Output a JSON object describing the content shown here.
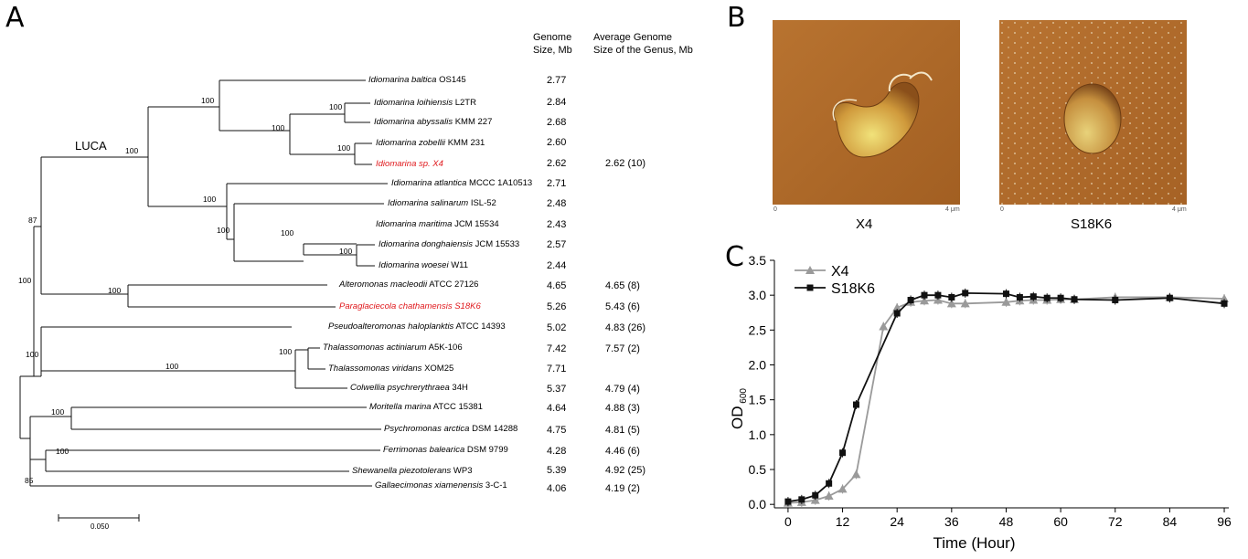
{
  "panels": {
    "a": "A",
    "b": "B",
    "c": "C"
  },
  "tree": {
    "headers": {
      "genome_size": [
        "Genome",
        "Size, Mb"
      ],
      "avg_genome": [
        "Average Genome",
        "Size of the Genus, Mb"
      ]
    },
    "luca_label": "LUCA",
    "scale_label": "0.050",
    "taxa": [
      {
        "genus": "Idiomarina baltica",
        "strain": "OS145",
        "size": "2.77",
        "avg": "",
        "highlight": false
      },
      {
        "genus": "Idiomarina loihiensis",
        "strain": "L2TR",
        "size": "2.84",
        "avg": "",
        "highlight": false
      },
      {
        "genus": "Idiomarina abyssalis",
        "strain": "KMM 227",
        "size": "2.68",
        "avg": "",
        "highlight": false
      },
      {
        "genus": "Idiomarina zobellii",
        "strain": "KMM 231",
        "size": "2.60",
        "avg": "",
        "highlight": false
      },
      {
        "genus": "Idiomarina sp. X4",
        "strain": "",
        "size": "2.62",
        "avg": "2.62 (10)",
        "highlight": true
      },
      {
        "genus": "Idiomarina atlantica",
        "strain": "MCCC 1A10513",
        "size": "2.71",
        "avg": "",
        "highlight": false
      },
      {
        "genus": "Idiomarina salinarum",
        "strain": "ISL-52",
        "size": "2.48",
        "avg": "",
        "highlight": false
      },
      {
        "genus": "Idiomarina maritima",
        "strain": "JCM 15534",
        "size": "2.43",
        "avg": "",
        "highlight": false
      },
      {
        "genus": "Idiomarina donghaiensis",
        "strain": "JCM 15533",
        "size": "2.57",
        "avg": "",
        "highlight": false
      },
      {
        "genus": "Idiomarina woesei",
        "strain": "W11",
        "size": "2.44",
        "avg": "",
        "highlight": false
      },
      {
        "genus": "Alteromonas macleodii",
        "strain": "ATCC 27126",
        "size": "4.65",
        "avg": "4.65 (8)",
        "highlight": false
      },
      {
        "genus": "Paraglaciecola chathamensis S18K6",
        "strain": "",
        "size": "5.26",
        "avg": "5.43 (6)",
        "highlight": true
      },
      {
        "genus": "Pseudoalteromonas haloplanktis",
        "strain": "ATCC 14393",
        "size": "5.02",
        "avg": "4.83 (26)",
        "highlight": false
      },
      {
        "genus": "Thalassomonas actiniarum",
        "strain": "A5K-106",
        "size": "7.42",
        "avg": "7.57 (2)",
        "highlight": false
      },
      {
        "genus": "Thalassomonas viridans",
        "strain": "XOM25",
        "size": "7.71",
        "avg": "",
        "highlight": false
      },
      {
        "genus": "Colwellia psychrerythraea",
        "strain": "34H",
        "size": "5.37",
        "avg": "4.79 (4)",
        "highlight": false
      },
      {
        "genus": "Moritella marina",
        "strain": "ATCC 15381",
        "size": "4.64",
        "avg": "4.88 (3)",
        "highlight": false
      },
      {
        "genus": "Psychromonas arctica",
        "strain": "DSM 14288",
        "size": "4.75",
        "avg": "4.81 (5)",
        "highlight": false
      },
      {
        "genus": "Ferrimonas balearica",
        "strain": "DSM 9799",
        "size": "4.28",
        "avg": "4.46 (6)",
        "highlight": false
      },
      {
        "genus": "Shewanella piezotolerans",
        "strain": "WP3",
        "size": "5.39",
        "avg": "4.92 (25)",
        "highlight": false
      },
      {
        "genus": "Gallaecimonas xiamenensis",
        "strain": "3-C-1",
        "size": "4.06",
        "avg": "4.19 (2)",
        "highlight": false
      }
    ],
    "bootstrap": [
      "100",
      "100",
      "100",
      "100",
      "100",
      "87",
      "100",
      "100",
      "100",
      "100",
      "100",
      "100",
      "100",
      "100",
      "100",
      "85",
      "100",
      "100"
    ]
  },
  "afm": {
    "left": {
      "caption": "X4",
      "scale_start": "0",
      "scale_end": "4 μm"
    },
    "right": {
      "caption": "S18K6",
      "scale_start": "0",
      "scale_end": "4 μm"
    }
  },
  "chart_data": {
    "type": "line",
    "title": "",
    "xlabel": "Time (Hour)",
    "ylabel": "OD 600",
    "ylabel_main": "OD",
    "ylabel_sub": "600",
    "xlim": [
      -3,
      97
    ],
    "ylim": [
      -0.05,
      3.5
    ],
    "xticks": [
      0,
      12,
      24,
      36,
      48,
      60,
      72,
      84,
      96
    ],
    "yticks": [
      0.0,
      0.5,
      1.0,
      1.5,
      2.0,
      2.5,
      3.0,
      3.5
    ],
    "ytick_labels": [
      "0.0",
      "0.5",
      "1.0",
      "1.5",
      "2.0",
      "2.5",
      "3.0",
      "3.5"
    ],
    "legend_position": "top-left",
    "series": [
      {
        "name": "X4",
        "color": "#9a9a9a",
        "marker": "triangle",
        "x": [
          0,
          3,
          6,
          9,
          12,
          15,
          21,
          24,
          27,
          30,
          33,
          36,
          39,
          48,
          51,
          54,
          57,
          60,
          63,
          72,
          84,
          96
        ],
        "y": [
          0.02,
          0.03,
          0.06,
          0.12,
          0.22,
          0.43,
          2.55,
          2.82,
          2.9,
          2.92,
          2.93,
          2.88,
          2.88,
          2.9,
          2.92,
          2.93,
          2.93,
          2.94,
          2.94,
          2.97,
          2.97,
          2.95
        ]
      },
      {
        "name": "S18K6",
        "color": "#111111",
        "marker": "square",
        "x": [
          0,
          3,
          6,
          9,
          12,
          15,
          24,
          27,
          30,
          33,
          36,
          39,
          48,
          51,
          54,
          57,
          60,
          63,
          72,
          84,
          96
        ],
        "y": [
          0.04,
          0.07,
          0.13,
          0.3,
          0.74,
          1.43,
          2.74,
          2.93,
          3.0,
          3.0,
          2.97,
          3.03,
          3.02,
          2.97,
          2.98,
          2.96,
          2.96,
          2.94,
          2.93,
          2.96,
          2.88
        ]
      }
    ]
  }
}
